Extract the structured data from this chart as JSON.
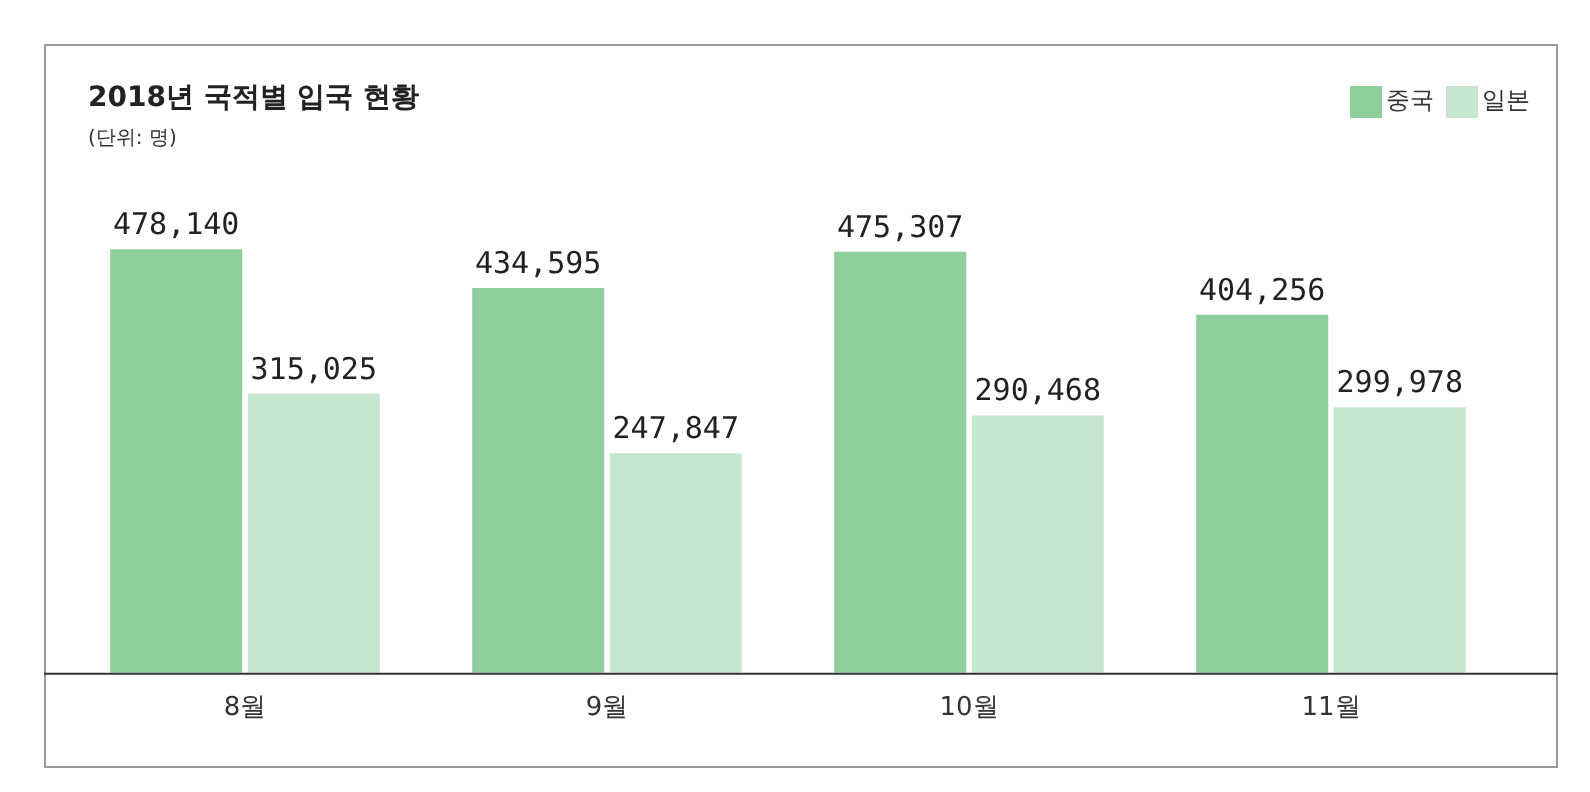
{
  "chart_data": {
    "type": "bar",
    "title": "2018년 국적별 입국 현황",
    "subtitle": "(단위: 명)",
    "categories": [
      "8월",
      "9월",
      "10월",
      "11월"
    ],
    "series": [
      {
        "name": "중국",
        "color": "#8fce9c",
        "values": [
          478140,
          434595,
          475307,
          404256
        ],
        "value_labels": [
          "478,140",
          "434,595",
          "475,307",
          "404,256"
        ]
      },
      {
        "name": "일본",
        "color": "#c7e6d0",
        "values": [
          315025,
          247847,
          290468,
          299978
        ],
        "value_labels": [
          "315,025",
          "247,847",
          "290,468",
          "299,978"
        ]
      }
    ],
    "legend": "top right",
    "grid": false
  }
}
